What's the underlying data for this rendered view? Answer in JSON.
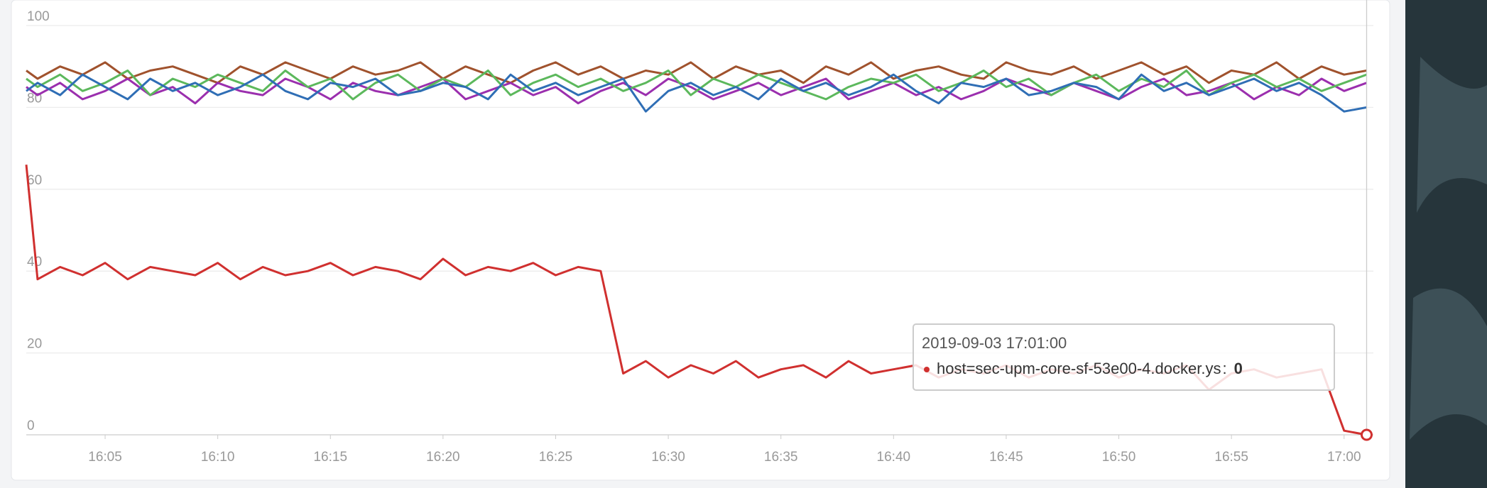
{
  "chart_data": {
    "type": "line",
    "x": [
      1.5,
      2,
      3,
      4,
      5,
      6,
      7,
      8,
      9,
      10,
      11,
      12,
      13,
      14,
      15,
      16,
      17,
      18,
      19,
      20,
      21,
      22,
      23,
      24,
      25,
      26,
      27,
      28,
      29,
      30,
      31,
      32,
      33,
      34,
      35,
      36,
      37,
      38,
      39,
      40,
      41,
      42,
      43,
      44,
      45,
      46,
      47,
      48,
      49,
      50,
      51,
      52,
      53,
      54,
      55,
      56,
      57,
      58,
      59,
      60,
      61
    ],
    "series": [
      {
        "name": "host=sec-upm-core-sf-53e00-4.docker.ys",
        "color": "#d0302f",
        "values": [
          66,
          38,
          41,
          39,
          42,
          38,
          41,
          40,
          39,
          42,
          38,
          41,
          39,
          40,
          42,
          39,
          41,
          40,
          38,
          43,
          39,
          41,
          40,
          42,
          39,
          41,
          40,
          15,
          18,
          14,
          17,
          15,
          18,
          14,
          16,
          17,
          14,
          18,
          15,
          16,
          17,
          14,
          16,
          15,
          17,
          14,
          16,
          15,
          17,
          14,
          16,
          15,
          17,
          11,
          15,
          16,
          14,
          15,
          16,
          1,
          0
        ]
      },
      {
        "color": "#2f6eb5",
        "values": [
          84,
          86,
          83,
          88,
          85,
          82,
          87,
          84,
          86,
          83,
          85,
          88,
          84,
          82,
          86,
          85,
          87,
          83,
          84,
          86,
          85,
          82,
          88,
          84,
          86,
          83,
          85,
          87,
          79,
          84,
          86,
          83,
          85,
          82,
          87,
          84,
          86,
          83,
          85,
          88,
          84,
          81,
          86,
          85,
          87,
          83,
          84,
          86,
          85,
          82,
          88,
          84,
          86,
          83,
          85,
          87,
          84,
          86,
          83,
          79,
          80
        ]
      },
      {
        "color": "#5cb85c",
        "values": [
          87,
          85,
          88,
          84,
          86,
          89,
          83,
          87,
          85,
          88,
          86,
          84,
          89,
          85,
          87,
          82,
          86,
          88,
          84,
          87,
          85,
          89,
          83,
          86,
          88,
          85,
          87,
          84,
          86,
          89,
          83,
          87,
          85,
          88,
          86,
          84,
          82,
          85,
          87,
          86,
          88,
          84,
          86,
          89,
          85,
          87,
          83,
          86,
          88,
          84,
          87,
          85,
          89,
          83,
          86,
          88,
          85,
          87,
          84,
          86,
          88
        ]
      },
      {
        "color": "#9b2fae",
        "values": [
          85,
          83,
          86,
          82,
          84,
          87,
          83,
          85,
          81,
          86,
          84,
          83,
          87,
          85,
          82,
          86,
          84,
          83,
          85,
          87,
          82,
          84,
          86,
          83,
          85,
          81,
          84,
          86,
          83,
          87,
          85,
          82,
          84,
          86,
          83,
          85,
          87,
          82,
          84,
          86,
          83,
          85,
          82,
          84,
          87,
          85,
          83,
          86,
          84,
          82,
          85,
          87,
          83,
          84,
          86,
          82,
          85,
          83,
          87,
          84,
          86
        ]
      },
      {
        "color": "#a0522d",
        "values": [
          89,
          87,
          90,
          88,
          91,
          87,
          89,
          90,
          88,
          86,
          90,
          88,
          91,
          89,
          87,
          90,
          88,
          89,
          91,
          87,
          90,
          88,
          86,
          89,
          91,
          88,
          90,
          87,
          89,
          88,
          91,
          87,
          90,
          88,
          89,
          86,
          90,
          88,
          91,
          87,
          89,
          90,
          88,
          87,
          91,
          89,
          88,
          90,
          87,
          89,
          91,
          88,
          90,
          86,
          89,
          88,
          91,
          87,
          90,
          88,
          89
        ]
      }
    ],
    "xlim": [
      1.5,
      61.3
    ],
    "xticks": [
      {
        "value": 5,
        "label": "16:05"
      },
      {
        "value": 10,
        "label": "16:10"
      },
      {
        "value": 15,
        "label": "16:15"
      },
      {
        "value": 20,
        "label": "16:20"
      },
      {
        "value": 25,
        "label": "16:25"
      },
      {
        "value": 30,
        "label": "16:30"
      },
      {
        "value": 35,
        "label": "16:35"
      },
      {
        "value": 40,
        "label": "16:40"
      },
      {
        "value": 45,
        "label": "16:45"
      },
      {
        "value": 50,
        "label": "16:50"
      },
      {
        "value": 55,
        "label": "16:55"
      },
      {
        "value": 60,
        "label": "17:00"
      }
    ],
    "ylim": [
      0,
      100
    ],
    "yticks": [
      0,
      20,
      40,
      60,
      80,
      100
    ],
    "grid": true,
    "tooltip": {
      "title": "2019-09-03 17:01:00",
      "separator": ":"
    }
  }
}
